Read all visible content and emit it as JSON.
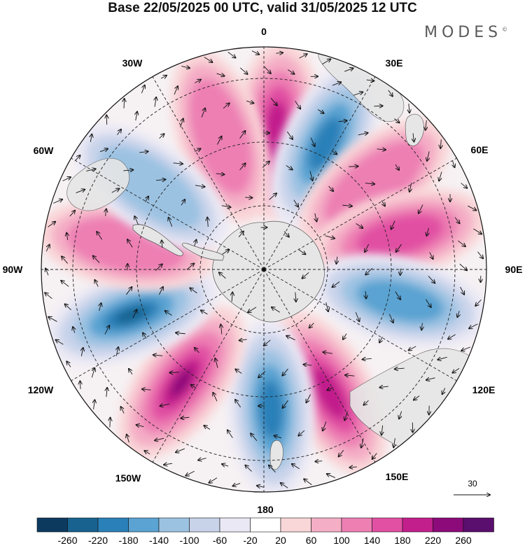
{
  "title": "Base 22/05/2025 00 UTC, valid 31/05/2025 12 UTC",
  "brand": "MODES",
  "brand_mark": "©",
  "longitude_labels": {
    "lon_0": "0",
    "lon_30e": "30E",
    "lon_60e": "60E",
    "lon_90e": "90E",
    "lon_120e": "120E",
    "lon_150e": "150E",
    "lon_180": "180",
    "lon_150w": "150W",
    "lon_120w": "120W",
    "lon_90w": "90W",
    "lon_60w": "60W",
    "lon_30w": "30W"
  },
  "vector_scale_label": "30",
  "colorbar": {
    "tick_labels": [
      "-260",
      "-220",
      "-180",
      "-140",
      "-100",
      "-60",
      "-20",
      "20",
      "60",
      "100",
      "140",
      "180",
      "220",
      "260"
    ],
    "colors": [
      "#0c3a5f",
      "#17628f",
      "#2a80b8",
      "#5aa3d2",
      "#9cc2e2",
      "#c8d3ea",
      "#e9e8f4",
      "#ffffff",
      "#f9d6d8",
      "#f4aec6",
      "#ed7fb3",
      "#e150a3",
      "#c21f8c",
      "#8c0a7a",
      "#5a0e6e"
    ]
  },
  "anomaly_lobes": [
    {
      "lon": 5,
      "sign": "positive",
      "level": 200
    },
    {
      "lon": -18,
      "sign": "positive",
      "level": 140
    },
    {
      "lon": 26,
      "sign": "negative",
      "level": -200
    },
    {
      "lon": 52,
      "sign": "positive",
      "level": 120
    },
    {
      "lon": 76,
      "sign": "positive",
      "level": 160
    },
    {
      "lon": 103,
      "sign": "negative",
      "level": -180
    },
    {
      "lon": 152,
      "sign": "positive",
      "level": 220
    },
    {
      "lon": 177,
      "sign": "negative",
      "level": -200
    },
    {
      "lon": -144,
      "sign": "positive",
      "level": 240
    },
    {
      "lon": -109,
      "sign": "negative",
      "level": -240
    },
    {
      "lon": -80,
      "sign": "positive",
      "level": 120
    },
    {
      "lon": -54,
      "sign": "negative",
      "level": -120
    }
  ]
}
